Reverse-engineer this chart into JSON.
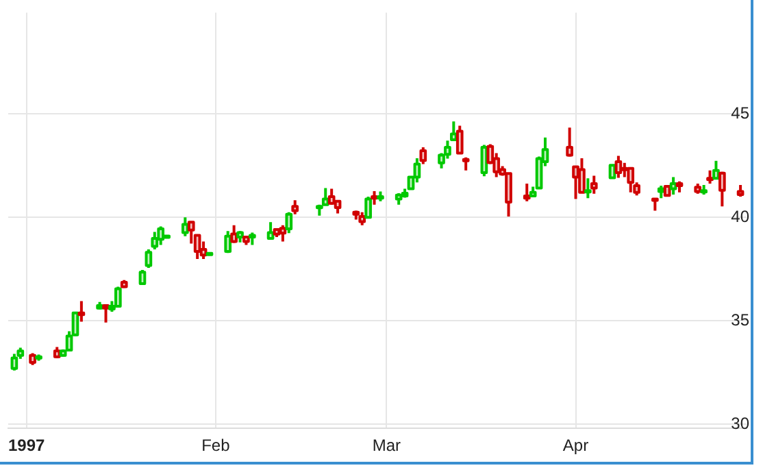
{
  "chart_data": {
    "type": "candlestick",
    "x": [
      "1996-12-30",
      "1996-12-31",
      "1997-01-02",
      "1997-01-03",
      "1997-01-06",
      "1997-01-07",
      "1997-01-08",
      "1997-01-09",
      "1997-01-10",
      "1997-01-13",
      "1997-01-14",
      "1997-01-15",
      "1997-01-16",
      "1997-01-17",
      "1997-01-20",
      "1997-01-21",
      "1997-01-22",
      "1997-01-23",
      "1997-01-24",
      "1997-01-27",
      "1997-01-28",
      "1997-01-29",
      "1997-01-30",
      "1997-01-31",
      "1997-02-03",
      "1997-02-04",
      "1997-02-05",
      "1997-02-06",
      "1997-02-07",
      "1997-02-10",
      "1997-02-11",
      "1997-02-12",
      "1997-02-13",
      "1997-02-14",
      "1997-02-18",
      "1997-02-19",
      "1997-02-20",
      "1997-02-21",
      "1997-02-24",
      "1997-02-25",
      "1997-02-26",
      "1997-02-27",
      "1997-02-28",
      "1997-03-03",
      "1997-03-04",
      "1997-03-05",
      "1997-03-06",
      "1997-03-07",
      "1997-03-10",
      "1997-03-11",
      "1997-03-12",
      "1997-03-13",
      "1997-03-14",
      "1997-03-17",
      "1997-03-18",
      "1997-03-19",
      "1997-03-20",
      "1997-03-21",
      "1997-03-24",
      "1997-03-25",
      "1997-03-26",
      "1997-03-27",
      "1997-03-31",
      "1997-04-01",
      "1997-04-02",
      "1997-04-03",
      "1997-04-04",
      "1997-04-07",
      "1997-04-08",
      "1997-04-09",
      "1997-04-10",
      "1997-04-11",
      "1997-04-14",
      "1997-04-15",
      "1997-04-16",
      "1997-04-17",
      "1997-04-18",
      "1997-04-21",
      "1997-04-22",
      "1997-04-23",
      "1997-04-24",
      "1997-04-25",
      "1997-04-28"
    ],
    "ohlc": [
      [
        32.7,
        33.4,
        32.6,
        33.2
      ],
      [
        33.33,
        33.7,
        33.16,
        33.54
      ],
      [
        33.33,
        33.43,
        32.86,
        32.99
      ],
      [
        33.2,
        33.37,
        33.07,
        33.26
      ],
      [
        33.54,
        33.73,
        33.2,
        33.26
      ],
      [
        33.33,
        33.62,
        33.28,
        33.54
      ],
      [
        33.58,
        34.49,
        33.52,
        34.26
      ],
      [
        34.32,
        35.44,
        34.26,
        35.38
      ],
      [
        35.38,
        35.95,
        34.96,
        35.3
      ],
      [
        35.61,
        35.91,
        35.55,
        35.74
      ],
      [
        35.74,
        35.78,
        34.92,
        35.61
      ],
      [
        35.57,
        35.95,
        35.44,
        35.7
      ],
      [
        35.7,
        36.65,
        35.66,
        36.55
      ],
      [
        36.86,
        36.97,
        36.59,
        36.65
      ],
      [
        36.8,
        37.46,
        36.76,
        37.35
      ],
      [
        37.67,
        38.45,
        37.56,
        38.31
      ],
      [
        38.6,
        39.3,
        38.45,
        38.98
      ],
      [
        38.94,
        39.56,
        38.67,
        39.45
      ],
      [
        39.07,
        39.12,
        39.05,
        39.1
      ],
      [
        39.26,
        40.0,
        39.09,
        39.66
      ],
      [
        39.77,
        39.79,
        38.73,
        39.39
      ],
      [
        39.13,
        39.15,
        37.99,
        38.35
      ],
      [
        38.45,
        38.83,
        37.99,
        38.18
      ],
      [
        38.22,
        38.28,
        38.2,
        38.26
      ],
      [
        38.35,
        39.34,
        38.28,
        39.09
      ],
      [
        39.2,
        39.62,
        38.77,
        38.83
      ],
      [
        39.05,
        39.34,
        38.79,
        39.26
      ],
      [
        39.05,
        39.09,
        38.67,
        38.83
      ],
      [
        39.05,
        39.26,
        38.67,
        39.13
      ],
      [
        38.98,
        39.77,
        38.98,
        39.26
      ],
      [
        39.41,
        39.47,
        39.05,
        39.19
      ],
      [
        39.47,
        39.62,
        38.83,
        39.24
      ],
      [
        39.45,
        40.25,
        39.24,
        40.15
      ],
      [
        40.53,
        40.83,
        40.15,
        40.32
      ],
      [
        40.49,
        40.61,
        40.08,
        40.53
      ],
      [
        40.61,
        41.42,
        40.57,
        40.89
      ],
      [
        41.0,
        41.38,
        40.61,
        40.68
      ],
      [
        40.78,
        40.78,
        40.19,
        40.47
      ],
      [
        40.25,
        40.32,
        39.89,
        40.15
      ],
      [
        40.04,
        40.25,
        39.62,
        39.79
      ],
      [
        40.0,
        41.0,
        40.0,
        40.89
      ],
      [
        41.0,
        41.27,
        40.61,
        40.93
      ],
      [
        40.93,
        41.25,
        40.78,
        41.0
      ],
      [
        40.89,
        41.17,
        40.61,
        41.08
      ],
      [
        41.04,
        41.38,
        40.95,
        41.17
      ],
      [
        41.38,
        41.97,
        41.36,
        41.95
      ],
      [
        41.95,
        42.86,
        41.69,
        42.58
      ],
      [
        43.22,
        43.39,
        42.58,
        42.75
      ],
      [
        42.63,
        43.11,
        42.37,
        43.01
      ],
      [
        43.05,
        43.71,
        42.84,
        43.39
      ],
      [
        43.75,
        44.64,
        43.69,
        44.03
      ],
      [
        44.17,
        44.43,
        43.07,
        43.11
      ],
      [
        42.8,
        42.9,
        42.27,
        42.75
      ],
      [
        42.16,
        43.5,
        41.99,
        43.39
      ],
      [
        43.43,
        43.54,
        42.58,
        42.65
      ],
      [
        42.84,
        43.11,
        41.95,
        42.2
      ],
      [
        42.31,
        42.48,
        42.01,
        42.1
      ],
      [
        42.12,
        42.16,
        40.04,
        40.74
      ],
      [
        41.04,
        41.63,
        40.78,
        40.93
      ],
      [
        41.04,
        41.48,
        41.0,
        41.21
      ],
      [
        41.42,
        42.94,
        41.38,
        42.84
      ],
      [
        42.69,
        43.86,
        42.48,
        43.28
      ],
      [
        43.39,
        44.34,
        42.94,
        43.01
      ],
      [
        42.44,
        42.44,
        40.89,
        41.95
      ],
      [
        42.31,
        42.86,
        41.17,
        41.21
      ],
      [
        41.23,
        41.89,
        40.93,
        41.29
      ],
      [
        41.63,
        42.01,
        41.14,
        41.42
      ],
      [
        41.91,
        42.54,
        41.89,
        42.52
      ],
      [
        42.69,
        42.97,
        41.91,
        42.16
      ],
      [
        42.37,
        42.63,
        41.95,
        42.31
      ],
      [
        42.37,
        42.37,
        41.21,
        41.69
      ],
      [
        41.53,
        41.69,
        41.06,
        41.21
      ],
      [
        40.89,
        40.93,
        40.32,
        40.85
      ],
      [
        41.25,
        41.53,
        40.93,
        41.38
      ],
      [
        41.5,
        41.57,
        41.0,
        41.06
      ],
      [
        41.38,
        41.95,
        41.1,
        41.63
      ],
      [
        41.63,
        41.74,
        41.21,
        41.53
      ],
      [
        41.46,
        41.63,
        41.14,
        41.25
      ],
      [
        41.23,
        41.57,
        41.1,
        41.29
      ],
      [
        41.89,
        42.27,
        41.63,
        41.84
      ],
      [
        41.89,
        42.73,
        41.84,
        42.27
      ],
      [
        42.14,
        42.2,
        40.53,
        41.31
      ],
      [
        41.25,
        41.57,
        41.0,
        41.1
      ]
    ],
    "colors": [
      "#00c800",
      "#00c800",
      "#d00000",
      "#00c800",
      "#d00000",
      "#00c800",
      "#00c800",
      "#00c800",
      "#d00000",
      "#00c800",
      "#d00000",
      "#00c800",
      "#00c800",
      "#d00000",
      "#00c800",
      "#00c800",
      "#00c800",
      "#00c800",
      "#00c800",
      "#00c800",
      "#d00000",
      "#d00000",
      "#d00000",
      "#00c800",
      "#00c800",
      "#d00000",
      "#00c800",
      "#d00000",
      "#00c800",
      "#00c800",
      "#d00000",
      "#d00000",
      "#00c800",
      "#d00000",
      "#00c800",
      "#00c800",
      "#d00000",
      "#d00000",
      "#d00000",
      "#d00000",
      "#00c800",
      "#d00000",
      "#00c800",
      "#00c800",
      "#00c800",
      "#00c800",
      "#00c800",
      "#d00000",
      "#00c800",
      "#00c800",
      "#00c800",
      "#d00000",
      "#d00000",
      "#00c800",
      "#d00000",
      "#d00000",
      "#d00000",
      "#d00000",
      "#d00000",
      "#00c800",
      "#00c800",
      "#00c800",
      "#d00000",
      "#d00000",
      "#d00000",
      "#00c800",
      "#d00000",
      "#00c800",
      "#d00000",
      "#d00000",
      "#d00000",
      "#d00000",
      "#d00000",
      "#00c800",
      "#d00000",
      "#00c800",
      "#d00000",
      "#d00000",
      "#00c800",
      "#d00000",
      "#00c800",
      "#d00000",
      "#d00000"
    ],
    "xlim": [
      "1996-12-29",
      "1997-04-29"
    ],
    "xticks": [
      {
        "value": "1997-01-01",
        "label": "1997"
      },
      {
        "value": "1997-02-01",
        "label": "Feb"
      },
      {
        "value": "1997-03-01",
        "label": "Mar"
      },
      {
        "value": "1997-04-01",
        "label": "Apr"
      }
    ],
    "ylim": [
      29.8,
      49.9
    ],
    "yticks": [
      30,
      35,
      40,
      45
    ],
    "grid": true,
    "legend": false
  }
}
